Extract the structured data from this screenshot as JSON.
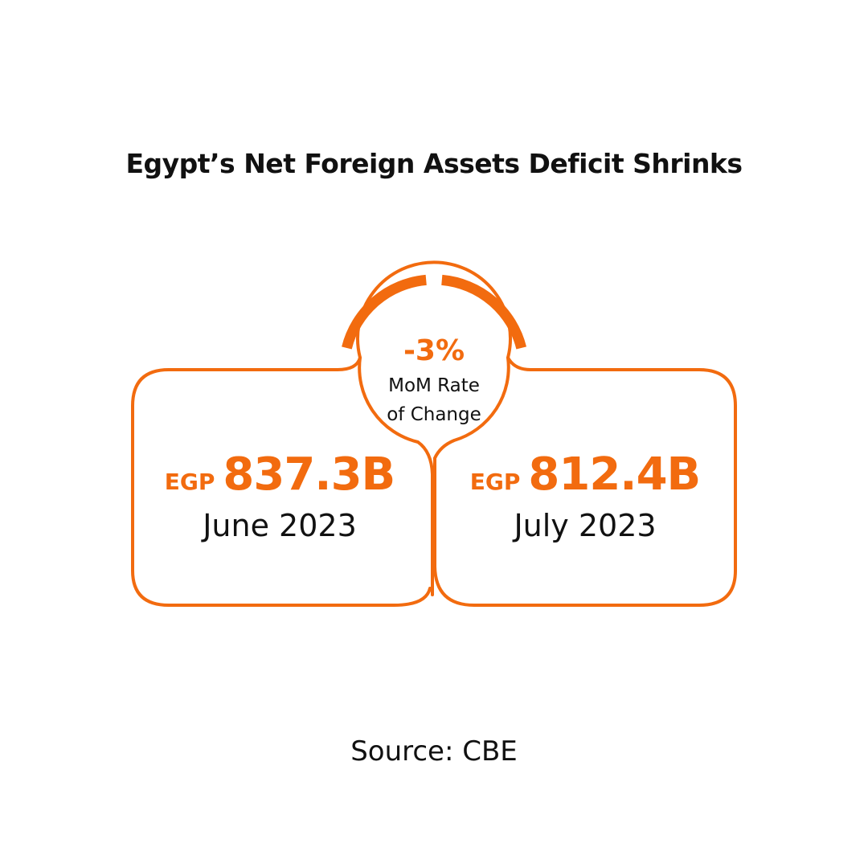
{
  "title": "Egypt’s Net Foreign Assets Deficit Shrinks",
  "change": {
    "value": "-3%",
    "label_line1": "MoM Rate",
    "label_line2": "of Change"
  },
  "left_card": {
    "currency": "EGP",
    "value": "837.3B",
    "period": "June 2023"
  },
  "right_card": {
    "currency": "EGP",
    "value": "812.4B",
    "period": "July 2023"
  },
  "source": "Source: CBE",
  "colors": {
    "accent": "#f26b0f",
    "text": "#111111",
    "background": "#ffffff"
  }
}
